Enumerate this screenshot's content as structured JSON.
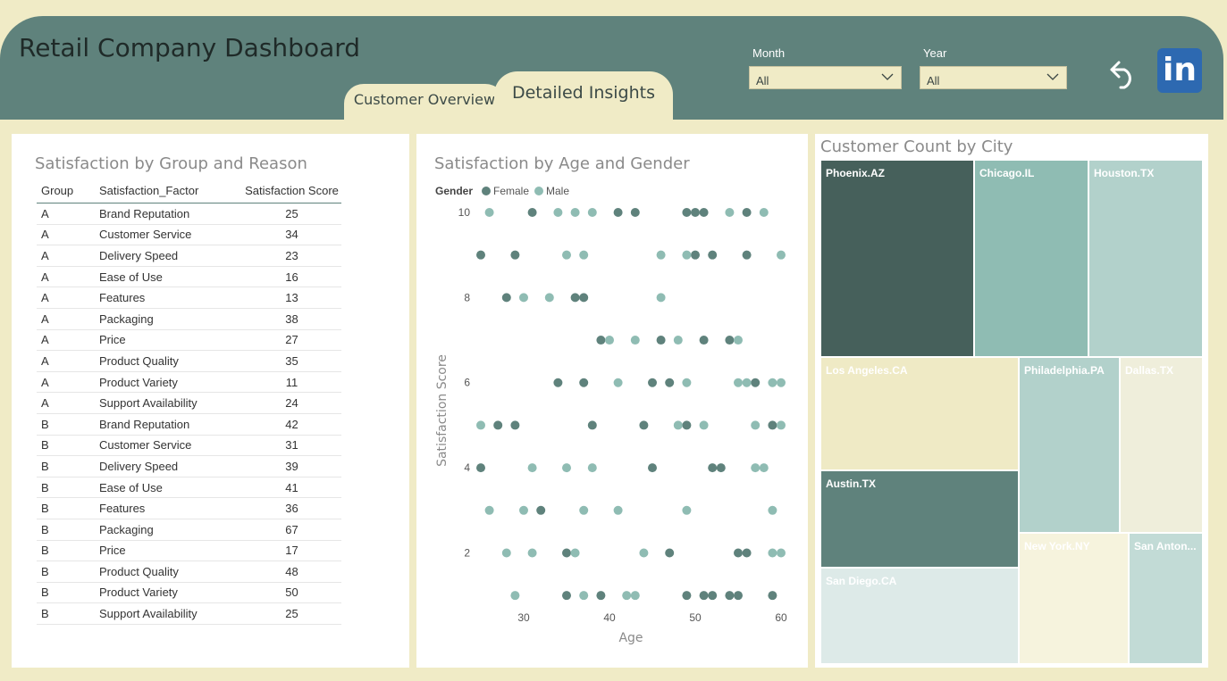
{
  "app": {
    "title": "Retail Company Dashboard"
  },
  "tabs": [
    {
      "label": "Customer Overview",
      "active": false
    },
    {
      "label": "Detailed Insights",
      "active": true
    }
  ],
  "filters": {
    "month": {
      "label": "Month",
      "value": "All"
    },
    "year": {
      "label": "Year",
      "value": "All"
    }
  },
  "icons": {
    "back": "undo-arrow-icon",
    "linkedin": "linkedin-icon",
    "linkedin_text": "in"
  },
  "colors": {
    "header": "#5f827c",
    "background": "#f0ebc6",
    "female": "#5f827c",
    "male": "#8fbcb3",
    "linkedin": "#2d69b1"
  },
  "table_panel": {
    "title": "Satisfaction by Group and Reason",
    "columns": [
      "Group",
      "Satisfaction_Factor",
      "Satisfaction Score"
    ],
    "rows": [
      [
        "A",
        "Brand Reputation",
        "25"
      ],
      [
        "A",
        "Customer Service",
        "34"
      ],
      [
        "A",
        "Delivery Speed",
        "23"
      ],
      [
        "A",
        "Ease of Use",
        "16"
      ],
      [
        "A",
        "Features",
        "13"
      ],
      [
        "A",
        "Packaging",
        "38"
      ],
      [
        "A",
        "Price",
        "27"
      ],
      [
        "A",
        "Product Quality",
        "35"
      ],
      [
        "A",
        "Product Variety",
        "11"
      ],
      [
        "A",
        "Support Availability",
        "24"
      ],
      [
        "B",
        "Brand Reputation",
        "42"
      ],
      [
        "B",
        "Customer Service",
        "31"
      ],
      [
        "B",
        "Delivery Speed",
        "39"
      ],
      [
        "B",
        "Ease of Use",
        "41"
      ],
      [
        "B",
        "Features",
        "36"
      ],
      [
        "B",
        "Packaging",
        "67"
      ],
      [
        "B",
        "Price",
        "17"
      ],
      [
        "B",
        "Product Quality",
        "48"
      ],
      [
        "B",
        "Product Variety",
        "50"
      ],
      [
        "B",
        "Support Availability",
        "25"
      ]
    ]
  },
  "scatter_panel": {
    "title": "Satisfaction by Age and Gender",
    "legend_title": "Gender",
    "legend": [
      "Female",
      "Male"
    ]
  },
  "treemap_panel": {
    "title": "Customer Count by City",
    "tiles": [
      {
        "name": "Phoenix.AZ",
        "color": "#46605b",
        "text": "#ffffff"
      },
      {
        "name": "Chicago.IL",
        "color": "#8fbcb3",
        "text": "#ffffff"
      },
      {
        "name": "Houston.TX",
        "color": "#b2d1cb",
        "text": "#ffffff"
      },
      {
        "name": "Los Angeles.CA",
        "color": "#efeac5",
        "text": "#ffffff"
      },
      {
        "name": "Philadelphia.PA",
        "color": "#b2d1cb",
        "text": "#ffffff"
      },
      {
        "name": "Dallas.TX",
        "color": "#efeedb",
        "text": "#ffffff"
      },
      {
        "name": "Austin.TX",
        "color": "#5f827c",
        "text": "#ffffff"
      },
      {
        "name": "San Diego.CA",
        "color": "#ddeae8",
        "text": "#ffffff"
      },
      {
        "name": "New York.NY",
        "color": "#f6f3dd",
        "text": "#ffffff"
      },
      {
        "name": "San Anton...",
        "color": "#c2dbd6",
        "text": "#ffffff"
      }
    ]
  },
  "chart_data": {
    "type": "scatter",
    "title": "Satisfaction by Age and Gender",
    "xlabel": "Age",
    "ylabel": "Satisfaction Score",
    "xlim": [
      25,
      60
    ],
    "ylim": [
      0.5,
      10
    ],
    "xticks": [
      30,
      40,
      50,
      60
    ],
    "yticks": [
      2,
      4,
      6,
      8,
      10
    ],
    "legend_placement": "top-left",
    "grid": false,
    "series": [
      {
        "name": "Female",
        "color": "#5f827c",
        "points": [
          [
            31,
            10
          ],
          [
            41,
            10
          ],
          [
            43,
            10
          ],
          [
            49,
            10
          ],
          [
            50,
            10
          ],
          [
            51,
            10
          ],
          [
            56,
            10
          ],
          [
            25,
            9
          ],
          [
            29,
            9
          ],
          [
            50,
            9
          ],
          [
            52,
            9
          ],
          [
            56,
            9
          ],
          [
            28,
            8
          ],
          [
            36,
            8
          ],
          [
            37,
            8
          ],
          [
            39,
            7
          ],
          [
            46,
            7
          ],
          [
            51,
            7
          ],
          [
            54,
            7
          ],
          [
            34,
            6
          ],
          [
            37,
            6
          ],
          [
            45,
            6
          ],
          [
            47,
            6
          ],
          [
            57,
            6
          ],
          [
            27,
            5
          ],
          [
            29,
            5
          ],
          [
            38,
            5
          ],
          [
            44,
            5
          ],
          [
            49,
            5
          ],
          [
            59,
            5
          ],
          [
            25,
            4
          ],
          [
            45,
            4
          ],
          [
            52,
            4
          ],
          [
            53,
            4
          ],
          [
            32,
            3
          ],
          [
            35,
            2
          ],
          [
            47,
            2
          ],
          [
            55,
            2
          ],
          [
            56,
            2
          ],
          [
            35,
            1
          ],
          [
            39,
            1
          ],
          [
            49,
            1
          ],
          [
            51,
            1
          ],
          [
            52,
            1
          ],
          [
            54,
            1
          ],
          [
            55,
            1
          ],
          [
            59,
            1
          ]
        ]
      },
      {
        "name": "Male",
        "color": "#8fbcb3",
        "points": [
          [
            26,
            10
          ],
          [
            34,
            10
          ],
          [
            36,
            10
          ],
          [
            38,
            10
          ],
          [
            54,
            10
          ],
          [
            58,
            10
          ],
          [
            35,
            9
          ],
          [
            37,
            9
          ],
          [
            46,
            9
          ],
          [
            49,
            9
          ],
          [
            60,
            9
          ],
          [
            30,
            8
          ],
          [
            33,
            8
          ],
          [
            46,
            8
          ],
          [
            40,
            7
          ],
          [
            43,
            7
          ],
          [
            48,
            7
          ],
          [
            55,
            7
          ],
          [
            41,
            6
          ],
          [
            49,
            6
          ],
          [
            55,
            6
          ],
          [
            56,
            6
          ],
          [
            59,
            6
          ],
          [
            60,
            6
          ],
          [
            25,
            5
          ],
          [
            48,
            5
          ],
          [
            51,
            5
          ],
          [
            57,
            5
          ],
          [
            60,
            5
          ],
          [
            31,
            4
          ],
          [
            35,
            4
          ],
          [
            38,
            4
          ],
          [
            57,
            4
          ],
          [
            58,
            4
          ],
          [
            26,
            3
          ],
          [
            30,
            3
          ],
          [
            37,
            3
          ],
          [
            41,
            3
          ],
          [
            49,
            3
          ],
          [
            59,
            3
          ],
          [
            28,
            2
          ],
          [
            31,
            2
          ],
          [
            36,
            2
          ],
          [
            44,
            2
          ],
          [
            59,
            2
          ],
          [
            60,
            2
          ],
          [
            29,
            1
          ],
          [
            37,
            1
          ],
          [
            42,
            1
          ],
          [
            43,
            1
          ]
        ]
      }
    ]
  }
}
